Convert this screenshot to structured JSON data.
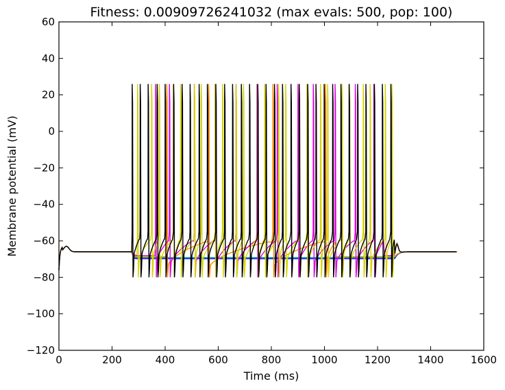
{
  "chart_data": {
    "type": "line",
    "title": "Fitness: 0.00909726241032 (max evals: 500, pop: 100)",
    "xlabel": "Time (ms)",
    "ylabel": "Membrane potential (mV)",
    "xlim": [
      0,
      1600
    ],
    "ylim": [
      -120,
      60
    ],
    "xticks": [
      0,
      200,
      400,
      600,
      800,
      1000,
      1200,
      1400,
      1600
    ],
    "yticks": [
      -120,
      -100,
      -80,
      -60,
      -40,
      -20,
      0,
      20,
      40,
      60
    ],
    "grid": false,
    "legend": "none",
    "stim_start": 272,
    "stim_end": 1265,
    "duration": 1500,
    "rest_potential": -66,
    "spike_peak": 26,
    "spike_trough": -80,
    "series": [
      {
        "color": "#000000",
        "spike_times": [
          276,
          306,
          336,
          370,
          400,
          432,
          464,
          494,
          528,
          559,
          591,
          624,
          654,
          687,
          718,
          749,
          780,
          812,
          842,
          874,
          905,
          937,
          968,
          999,
          1031,
          1062,
          1093,
          1125,
          1156,
          1188,
          1218,
          1250
        ]
      },
      {
        "color": "#d4d400",
        "spike_times": [
          296,
          349,
          378,
          431,
          458,
          510,
          536,
          588,
          616,
          667,
          695,
          748,
          775,
          827,
          854,
          905,
          934,
          985,
          1012,
          1066,
          1094,
          1146,
          1172,
          1229,
          1254
        ]
      },
      {
        "color": "#e000e0",
        "spike_times": [
          364,
          416,
          510,
          588,
          667,
          746,
          822,
          900,
          958,
          1040,
          1116,
          1186
        ]
      },
      {
        "color": "#ff8800",
        "spike_times": [
          406,
          564,
          806,
          1004
        ]
      },
      {
        "color": "#00a0a0",
        "spike_times": []
      },
      {
        "color": "#0000ff",
        "spike_times": []
      }
    ]
  }
}
